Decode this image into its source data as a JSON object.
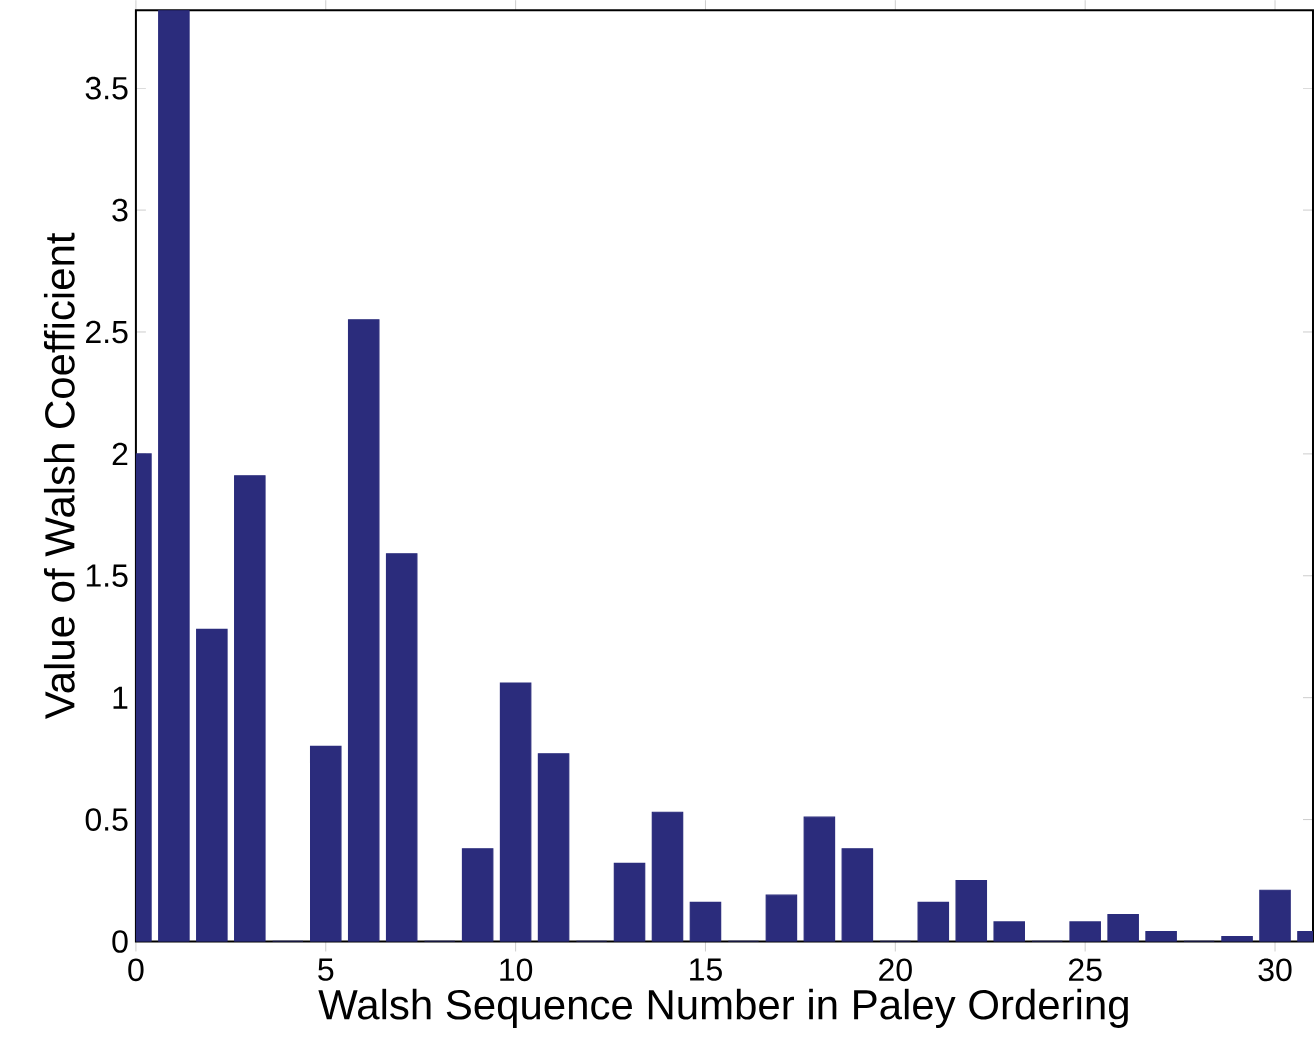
{
  "chart_data": {
    "type": "bar",
    "xlabel": "Walsh Sequence Number in Paley Ordering",
    "ylabel": "Value of Walsh Coefficient",
    "x": [
      0,
      1,
      2,
      3,
      4,
      5,
      6,
      7,
      8,
      9,
      10,
      11,
      12,
      13,
      14,
      15,
      16,
      17,
      18,
      19,
      20,
      21,
      22,
      23,
      24,
      25,
      26,
      27,
      28,
      29,
      30,
      31
    ],
    "values": [
      2.0,
      3.82,
      1.28,
      1.91,
      0,
      0.8,
      2.55,
      1.59,
      0,
      0.38,
      1.06,
      0.77,
      0,
      0.32,
      0.53,
      0.16,
      0,
      0.19,
      0.51,
      0.38,
      0,
      0.16,
      0.25,
      0.08,
      0,
      0.08,
      0.11,
      0.04,
      0,
      0.02,
      0.21,
      0.04
    ],
    "color": "#2b2c7c",
    "xlim": [
      0,
      31
    ],
    "ylim": [
      0,
      3.82
    ],
    "xticks": [
      0,
      5,
      10,
      15,
      20,
      25,
      30
    ],
    "yticks": [
      0,
      0.5,
      1,
      1.5,
      2,
      2.5,
      3,
      3.5
    ],
    "grid": false
  }
}
